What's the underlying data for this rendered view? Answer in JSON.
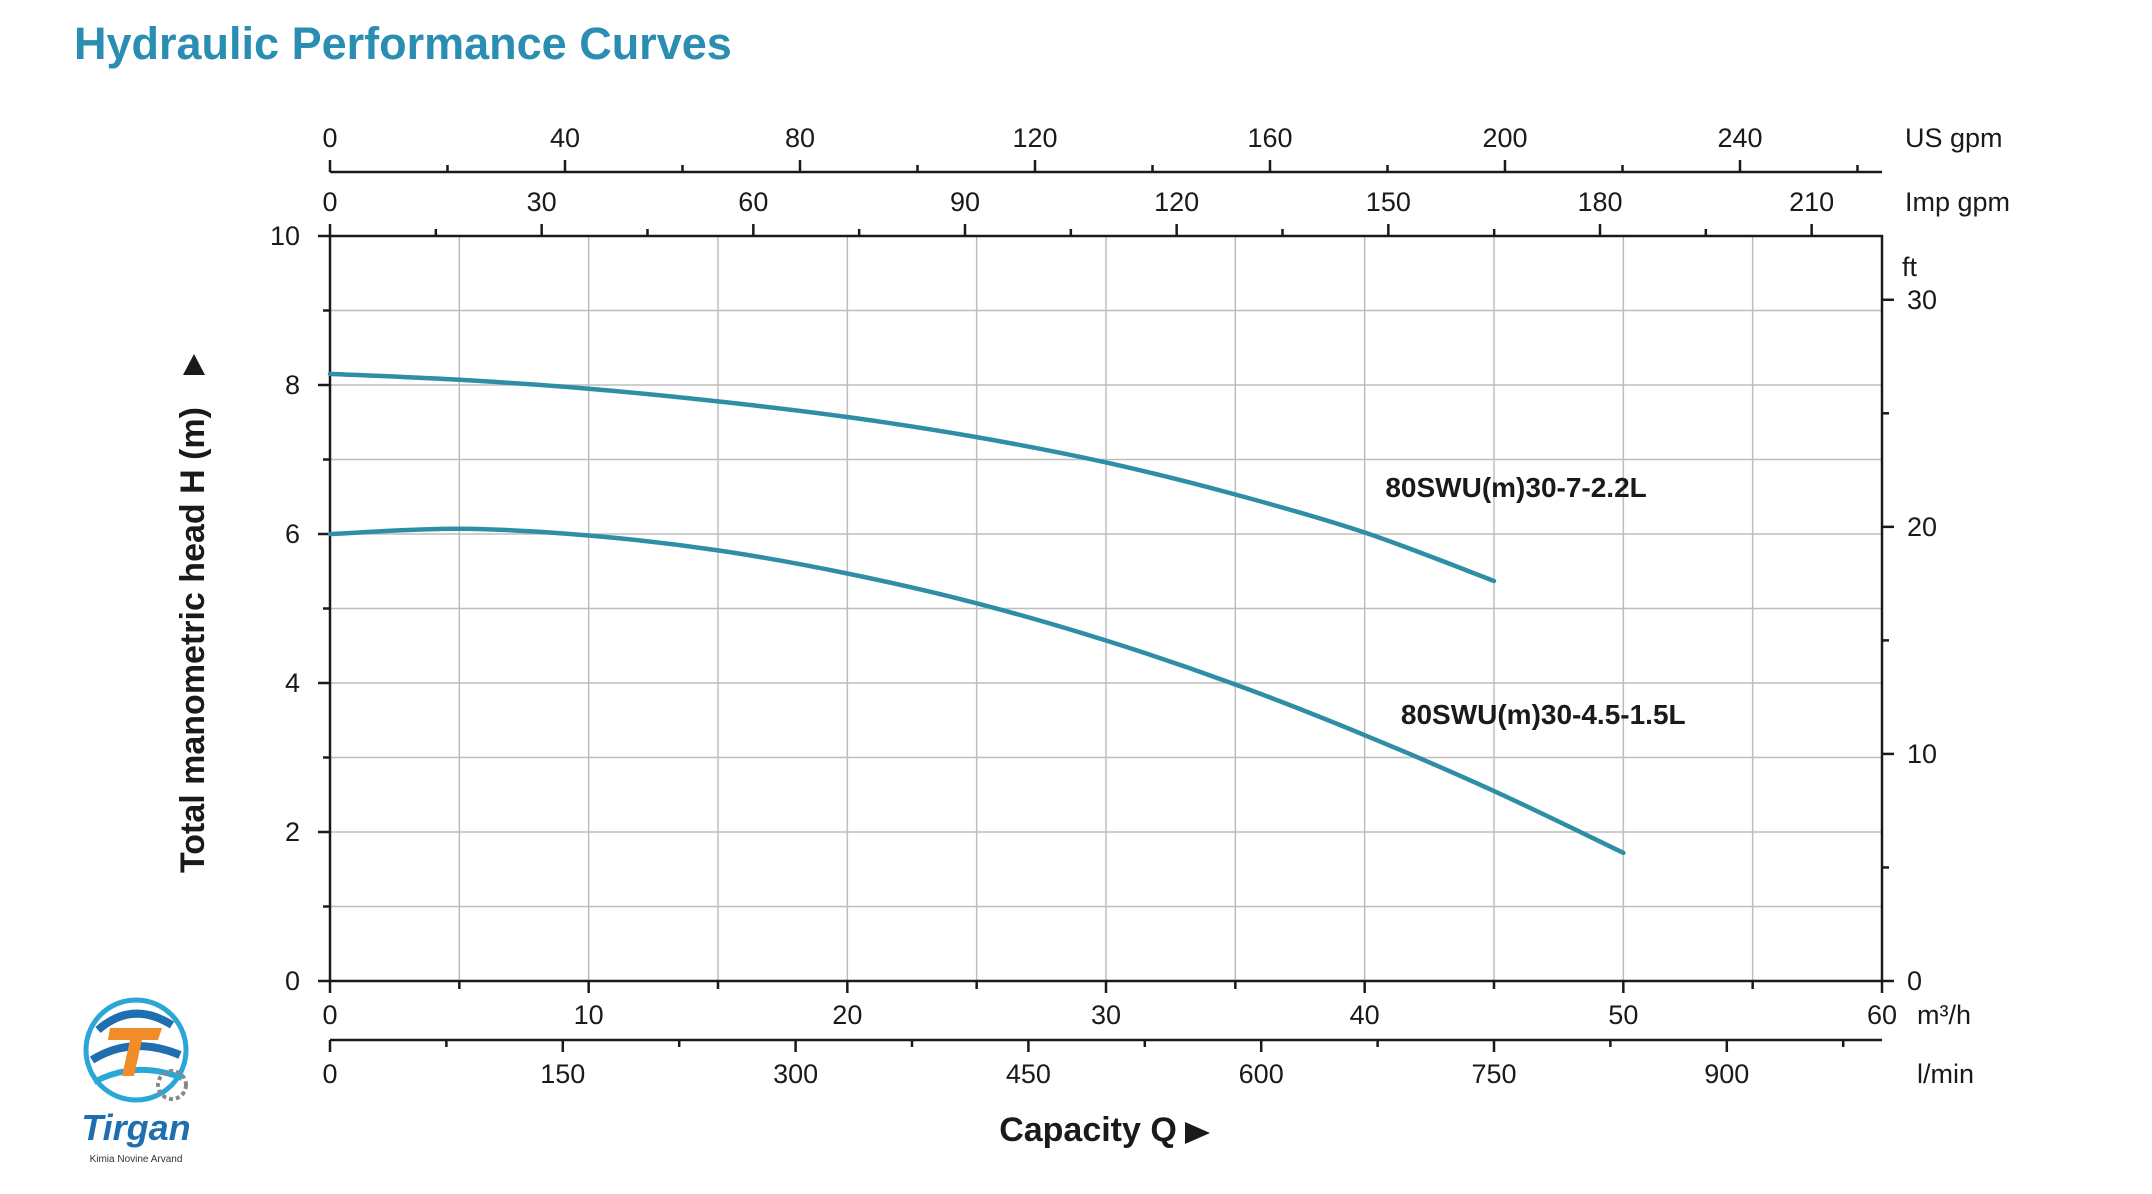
{
  "title": "Hydraulic Performance Curves",
  "colors": {
    "title": "#2a8db2",
    "curve": "#2e8ea6",
    "axis": "#1a1a1a",
    "grid": "#bdbdbd"
  },
  "chart_data": {
    "type": "line",
    "title": "",
    "xlabel": "Capacity Q",
    "ylabel": "Total manometric head H (m)",
    "xlim": [
      0,
      60
    ],
    "ylim": [
      0,
      10
    ],
    "grid": true,
    "x_axes": {
      "m3h": {
        "unit": "m³/h",
        "ticks": [
          0,
          10,
          20,
          30,
          40,
          50,
          60
        ]
      },
      "lmin": {
        "unit": "l/min",
        "ticks": [
          0,
          150,
          300,
          450,
          600,
          750,
          900
        ]
      },
      "usgpm": {
        "unit": "US gpm",
        "ticks": [
          0,
          40,
          80,
          120,
          160,
          200,
          240
        ]
      },
      "impgpm": {
        "unit": "Imp gpm",
        "ticks": [
          0,
          30,
          60,
          90,
          120,
          150,
          180,
          210
        ]
      }
    },
    "y_axes": {
      "m": {
        "unit": "",
        "ticks": [
          0,
          2,
          4,
          6,
          8,
          10
        ]
      },
      "ft": {
        "unit": "ft",
        "ticks": [
          0,
          10,
          20,
          30
        ]
      }
    },
    "series": [
      {
        "name": "80SWU(m)30-7-2.2L",
        "x": [
          0,
          5,
          10,
          15,
          20,
          25,
          30,
          35,
          40,
          45
        ],
        "y": [
          8.15,
          8.07,
          7.95,
          7.78,
          7.57,
          7.3,
          6.96,
          6.53,
          6.02,
          5.37
        ]
      },
      {
        "name": "80SWU(m)30-4.5-1.5L",
        "x": [
          0,
          5,
          10,
          15,
          20,
          25,
          30,
          35,
          40,
          45,
          50
        ],
        "y": [
          6.0,
          6.07,
          5.98,
          5.78,
          5.47,
          5.07,
          4.57,
          3.98,
          3.3,
          2.55,
          1.72
        ]
      }
    ]
  },
  "logo": {
    "name": "Tirgan",
    "tagline": "Kimia Novine Arvand"
  }
}
